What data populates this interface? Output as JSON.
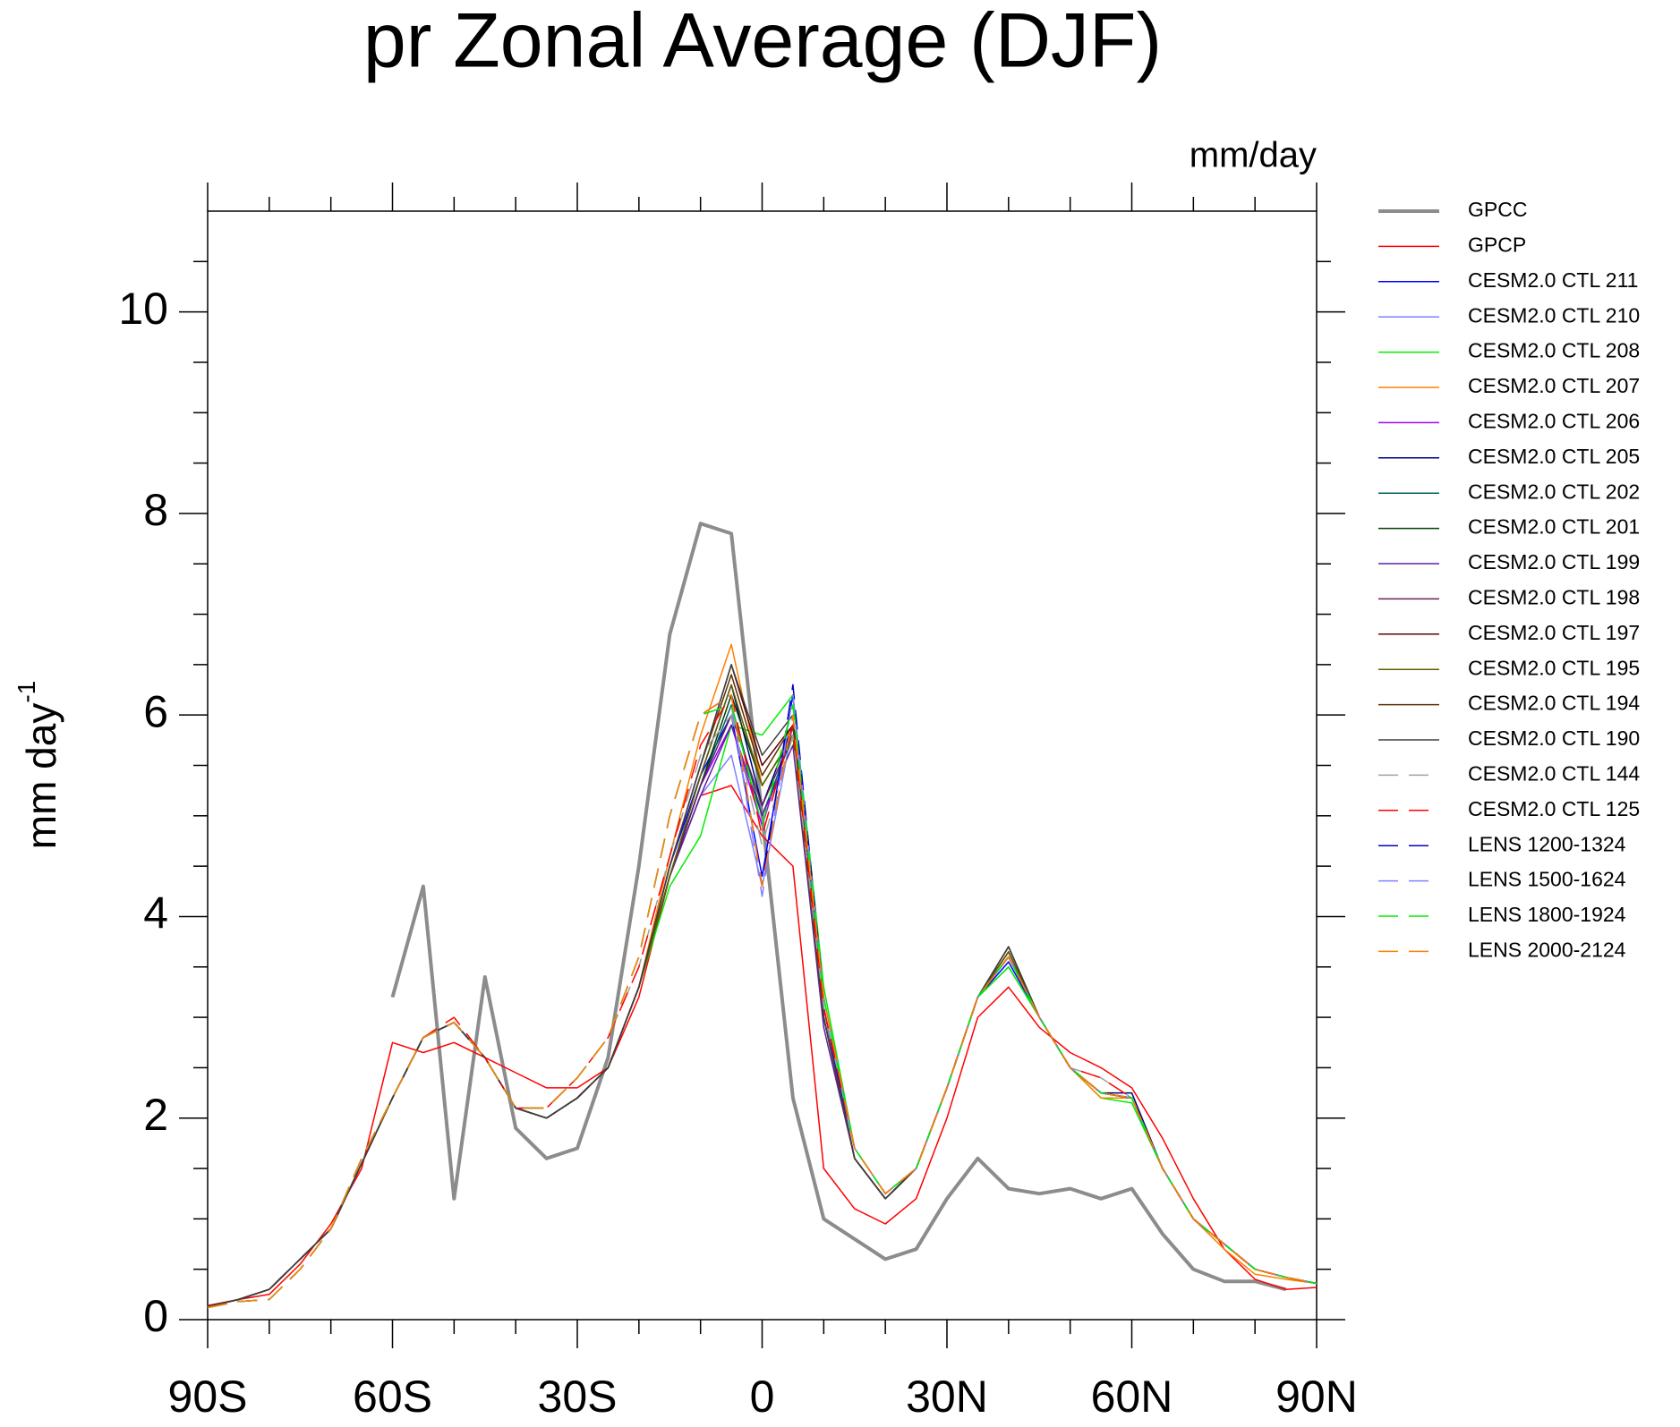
{
  "chart_data": {
    "type": "line",
    "title": "pr Zonal Average (DJF)",
    "units": "mm/day",
    "ylabel": "mm day",
    "ylabel_sup": "-1",
    "xlim": [
      -90,
      90
    ],
    "ylim": [
      0,
      11
    ],
    "xticks": [
      {
        "value": -90,
        "label": "90S"
      },
      {
        "value": -60,
        "label": "60S"
      },
      {
        "value": -30,
        "label": "30S"
      },
      0,
      {
        "value": 30,
        "label": "30N"
      },
      {
        "value": 60,
        "label": "60N"
      },
      {
        "value": 90,
        "label": "90N"
      }
    ],
    "xminorticks": [
      -80,
      -70,
      -50,
      -40,
      -20,
      -10,
      10,
      20,
      40,
      50,
      70,
      80
    ],
    "yticks": [
      0,
      2,
      4,
      6,
      8,
      10
    ],
    "yminorticks": [
      0.5,
      1,
      1.5,
      2.5,
      3,
      3.5,
      4.5,
      5,
      5.5,
      6.5,
      7,
      7.5,
      8.5,
      9,
      9.5,
      10.5
    ],
    "x": [
      -90,
      -85,
      -80,
      -75,
      -70,
      -65,
      -60,
      -55,
      -50,
      -45,
      -40,
      -35,
      -30,
      -25,
      -20,
      -15,
      -10,
      -5,
      0,
      5,
      10,
      15,
      20,
      25,
      30,
      35,
      40,
      45,
      50,
      55,
      60,
      65,
      70,
      75,
      80,
      85,
      90
    ],
    "series": [
      {
        "name": "GPCC",
        "color": "#8c8c8c",
        "width": 4,
        "dashed": false,
        "values": [
          null,
          null,
          null,
          null,
          null,
          null,
          3.2,
          4.3,
          1.2,
          3.4,
          1.9,
          1.6,
          1.7,
          2.6,
          4.5,
          6.8,
          7.9,
          7.8,
          5.0,
          2.2,
          1.0,
          0.8,
          0.6,
          0.7,
          1.2,
          1.6,
          1.3,
          1.25,
          1.3,
          1.2,
          1.3,
          0.85,
          0.5,
          0.38,
          0.38,
          0.3,
          null
        ]
      },
      {
        "name": "GPCP",
        "color": "#ff0000",
        "width": 1.5,
        "dashed": false,
        "values": [
          0.14,
          0.2,
          0.25,
          0.55,
          0.95,
          1.5,
          2.75,
          2.65,
          2.75,
          2.6,
          2.45,
          2.3,
          2.3,
          2.5,
          3.2,
          4.4,
          5.2,
          5.3,
          4.8,
          4.5,
          1.5,
          1.1,
          0.95,
          1.2,
          2.0,
          3.0,
          3.3,
          2.9,
          2.65,
          2.5,
          2.3,
          1.8,
          1.2,
          0.7,
          0.4,
          0.3,
          0.32
        ]
      },
      {
        "name": "CESM2.0 CTL 211",
        "color": "#0000ff",
        "width": 1.5,
        "dashed": false,
        "values": [
          0.13,
          0.2,
          0.3,
          0.6,
          0.9,
          1.55,
          2.2,
          2.8,
          2.95,
          2.6,
          2.1,
          2.0,
          2.2,
          2.5,
          3.3,
          4.5,
          5.4,
          6.0,
          4.4,
          6.2,
          3.1,
          1.6,
          1.2,
          1.5,
          2.3,
          3.2,
          3.55,
          3.0,
          2.5,
          2.25,
          2.2,
          1.5,
          1.0,
          0.75,
          0.5,
          0.42,
          0.36
        ]
      },
      {
        "name": "CESM2.0 CTL 210",
        "color": "#8080ff",
        "width": 1.5,
        "dashed": false,
        "values": [
          0.13,
          0.2,
          0.3,
          0.6,
          0.9,
          1.55,
          2.2,
          2.8,
          2.95,
          2.6,
          2.1,
          2.0,
          2.2,
          2.5,
          3.3,
          4.4,
          5.2,
          5.6,
          4.3,
          5.9,
          3.0,
          1.6,
          1.2,
          1.5,
          2.3,
          3.2,
          3.5,
          3.0,
          2.5,
          2.25,
          2.2,
          1.5,
          1.0,
          0.75,
          0.5,
          0.42,
          0.36
        ]
      },
      {
        "name": "CESM2.0 CTL 208",
        "color": "#00ee00",
        "width": 1.5,
        "dashed": false,
        "values": [
          0.13,
          0.2,
          0.3,
          0.6,
          0.9,
          1.55,
          2.2,
          2.8,
          2.95,
          2.6,
          2.1,
          2.0,
          2.2,
          2.5,
          3.3,
          4.3,
          4.8,
          5.9,
          5.8,
          6.2,
          3.3,
          1.7,
          1.25,
          1.5,
          2.3,
          3.2,
          3.5,
          3.0,
          2.5,
          2.2,
          2.15,
          1.5,
          1.0,
          0.75,
          0.5,
          0.42,
          0.36
        ]
      },
      {
        "name": "CESM2.0 CTL 207",
        "color": "#ff8000",
        "width": 1.5,
        "dashed": false,
        "values": [
          0.13,
          0.2,
          0.3,
          0.6,
          0.9,
          1.55,
          2.2,
          2.8,
          2.95,
          2.6,
          2.1,
          2.0,
          2.2,
          2.5,
          3.3,
          4.6,
          5.8,
          6.7,
          5.3,
          5.8,
          3.0,
          1.6,
          1.2,
          1.5,
          2.3,
          3.2,
          3.6,
          3.0,
          2.5,
          2.2,
          2.2,
          1.5,
          1.0,
          0.7,
          0.45,
          0.4,
          0.36
        ]
      },
      {
        "name": "CESM2.0 CTL 206",
        "color": "#a000ff",
        "width": 1.5,
        "dashed": false,
        "values": [
          0.13,
          0.2,
          0.3,
          0.6,
          0.9,
          1.55,
          2.2,
          2.8,
          2.95,
          2.6,
          2.1,
          2.0,
          2.2,
          2.5,
          3.3,
          4.4,
          5.3,
          5.9,
          4.9,
          5.9,
          3.0,
          1.6,
          1.2,
          1.5,
          2.3,
          3.2,
          3.6,
          3.0,
          2.5,
          2.25,
          2.2,
          1.5,
          1.0,
          0.75,
          0.5,
          0.42,
          0.36
        ]
      },
      {
        "name": "CESM2.0 CTL 205",
        "color": "#000080",
        "width": 1.5,
        "dashed": false,
        "values": [
          0.13,
          0.2,
          0.3,
          0.6,
          0.9,
          1.55,
          2.2,
          2.8,
          2.95,
          2.6,
          2.1,
          2.0,
          2.2,
          2.5,
          3.3,
          4.4,
          5.4,
          6.3,
          5.1,
          5.9,
          3.0,
          1.6,
          1.2,
          1.5,
          2.3,
          3.2,
          3.65,
          3.0,
          2.5,
          2.25,
          2.25,
          1.5,
          1.0,
          0.75,
          0.5,
          0.42,
          0.36
        ]
      },
      {
        "name": "CESM2.0 CTL 202",
        "color": "#006060",
        "width": 1.5,
        "dashed": false,
        "values": [
          0.13,
          0.2,
          0.3,
          0.6,
          0.9,
          1.55,
          2.2,
          2.8,
          2.95,
          2.6,
          2.1,
          2.0,
          2.2,
          2.5,
          3.3,
          4.4,
          5.3,
          6.1,
          5.0,
          5.8,
          3.0,
          1.6,
          1.2,
          1.5,
          2.3,
          3.2,
          3.6,
          3.0,
          2.5,
          2.25,
          2.2,
          1.5,
          1.0,
          0.75,
          0.5,
          0.42,
          0.36
        ]
      },
      {
        "name": "CESM2.0 CTL 201",
        "color": "#004000",
        "width": 1.5,
        "dashed": false,
        "values": [
          0.13,
          0.2,
          0.3,
          0.6,
          0.9,
          1.55,
          2.2,
          2.8,
          2.95,
          2.6,
          2.1,
          2.0,
          2.2,
          2.5,
          3.3,
          4.4,
          5.3,
          6.2,
          5.3,
          5.8,
          3.0,
          1.6,
          1.2,
          1.5,
          2.3,
          3.2,
          3.65,
          3.0,
          2.5,
          2.25,
          2.2,
          1.5,
          1.0,
          0.75,
          0.5,
          0.42,
          0.36
        ]
      },
      {
        "name": "CESM2.0 CTL 199",
        "color": "#6020a0",
        "width": 1.5,
        "dashed": false,
        "values": [
          0.13,
          0.2,
          0.3,
          0.6,
          0.9,
          1.55,
          2.2,
          2.8,
          2.95,
          2.6,
          2.1,
          2.0,
          2.2,
          2.5,
          3.3,
          4.4,
          5.2,
          5.9,
          5.0,
          5.7,
          2.9,
          1.6,
          1.2,
          1.5,
          2.3,
          3.2,
          3.6,
          3.0,
          2.5,
          2.25,
          2.2,
          1.5,
          1.0,
          0.75,
          0.5,
          0.42,
          0.36
        ]
      },
      {
        "name": "CESM2.0 CTL 198",
        "color": "#602060",
        "width": 1.5,
        "dashed": false,
        "values": [
          0.13,
          0.2,
          0.3,
          0.6,
          0.9,
          1.55,
          2.2,
          2.8,
          2.95,
          2.6,
          2.1,
          2.0,
          2.2,
          2.5,
          3.3,
          4.4,
          5.3,
          6.0,
          5.1,
          5.8,
          3.0,
          1.6,
          1.2,
          1.5,
          2.3,
          3.2,
          3.6,
          3.0,
          2.5,
          2.25,
          2.2,
          1.5,
          1.0,
          0.75,
          0.5,
          0.42,
          0.36
        ]
      },
      {
        "name": "CESM2.0 CTL 197",
        "color": "#600000",
        "width": 1.5,
        "dashed": false,
        "values": [
          0.13,
          0.2,
          0.3,
          0.6,
          0.9,
          1.55,
          2.2,
          2.8,
          2.95,
          2.6,
          2.1,
          2.0,
          2.2,
          2.5,
          3.3,
          4.5,
          5.5,
          6.5,
          5.5,
          5.9,
          3.0,
          1.6,
          1.2,
          1.5,
          2.3,
          3.2,
          3.7,
          3.0,
          2.5,
          2.25,
          2.2,
          1.5,
          1.0,
          0.75,
          0.5,
          0.42,
          0.36
        ]
      },
      {
        "name": "CESM2.0 CTL 195",
        "color": "#606000",
        "width": 1.5,
        "dashed": false,
        "values": [
          0.13,
          0.2,
          0.3,
          0.6,
          0.9,
          1.55,
          2.2,
          2.8,
          2.95,
          2.6,
          2.1,
          2.0,
          2.2,
          2.5,
          3.3,
          4.4,
          5.4,
          6.3,
          5.3,
          5.8,
          3.0,
          1.6,
          1.2,
          1.5,
          2.3,
          3.2,
          3.65,
          3.0,
          2.5,
          2.25,
          2.2,
          1.5,
          1.0,
          0.75,
          0.5,
          0.42,
          0.36
        ]
      },
      {
        "name": "CESM2.0 CTL 194",
        "color": "#603000",
        "width": 1.5,
        "dashed": false,
        "values": [
          0.13,
          0.2,
          0.3,
          0.6,
          0.9,
          1.55,
          2.2,
          2.8,
          2.95,
          2.6,
          2.1,
          2.0,
          2.2,
          2.5,
          3.3,
          4.5,
          5.5,
          6.4,
          5.4,
          5.9,
          3.0,
          1.6,
          1.2,
          1.5,
          2.3,
          3.2,
          3.7,
          3.0,
          2.5,
          2.25,
          2.2,
          1.5,
          1.0,
          0.75,
          0.5,
          0.42,
          0.36
        ]
      },
      {
        "name": "CESM2.0 CTL 190",
        "color": "#404040",
        "width": 1.5,
        "dashed": false,
        "values": [
          0.13,
          0.2,
          0.3,
          0.6,
          0.9,
          1.55,
          2.2,
          2.8,
          2.95,
          2.6,
          2.1,
          2.0,
          2.2,
          2.5,
          3.3,
          4.5,
          5.5,
          6.5,
          5.6,
          6.0,
          3.0,
          1.6,
          1.2,
          1.5,
          2.3,
          3.2,
          3.7,
          3.0,
          2.5,
          2.25,
          2.2,
          1.5,
          1.0,
          0.75,
          0.5,
          0.42,
          0.36
        ]
      },
      {
        "name": "CESM2.0 CTL 144",
        "color": "#a0a0a0",
        "width": 1.5,
        "dashed": true,
        "values": [
          0.12,
          0.18,
          0.2,
          0.5,
          0.9,
          1.6,
          2.2,
          2.8,
          2.95,
          2.6,
          2.1,
          2.1,
          2.4,
          2.8,
          3.5,
          4.6,
          5.6,
          6.0,
          4.7,
          5.8,
          3.1,
          1.7,
          1.25,
          1.5,
          2.3,
          3.2,
          3.6,
          3.0,
          2.5,
          2.4,
          2.2,
          1.5,
          1.0,
          0.75,
          0.5,
          0.42,
          0.36
        ]
      },
      {
        "name": "CESM2.0 CTL 125",
        "color": "#ff0000",
        "width": 1.5,
        "dashed": true,
        "values": [
          0.12,
          0.18,
          0.2,
          0.5,
          0.9,
          1.6,
          2.2,
          2.8,
          3.0,
          2.6,
          2.1,
          2.1,
          2.4,
          2.8,
          3.5,
          4.6,
          5.7,
          6.2,
          4.8,
          5.9,
          3.1,
          1.7,
          1.25,
          1.5,
          2.3,
          3.2,
          3.6,
          3.0,
          2.5,
          2.4,
          2.2,
          1.5,
          1.0,
          0.75,
          0.5,
          0.42,
          0.36
        ]
      },
      {
        "name": "LENS 1200-1324",
        "color": "#0000c0",
        "width": 1.5,
        "dashed": true,
        "values": [
          0.12,
          0.18,
          0.2,
          0.5,
          0.9,
          1.6,
          2.2,
          2.8,
          2.95,
          2.6,
          2.1,
          2.1,
          2.4,
          2.8,
          3.6,
          5.0,
          6.0,
          6.2,
          4.3,
          6.3,
          3.2,
          1.7,
          1.25,
          1.5,
          2.3,
          3.2,
          3.6,
          3.0,
          2.5,
          2.25,
          2.2,
          1.5,
          1.0,
          0.75,
          0.5,
          0.42,
          0.36
        ]
      },
      {
        "name": "LENS 1500-1624",
        "color": "#8080ff",
        "width": 1.5,
        "dashed": true,
        "values": [
          0.12,
          0.18,
          0.2,
          0.5,
          0.9,
          1.6,
          2.2,
          2.8,
          2.95,
          2.6,
          2.1,
          2.1,
          2.4,
          2.8,
          3.6,
          5.0,
          6.0,
          6.1,
          4.2,
          6.2,
          3.2,
          1.7,
          1.25,
          1.5,
          2.3,
          3.2,
          3.6,
          3.0,
          2.5,
          2.25,
          2.2,
          1.5,
          1.0,
          0.75,
          0.5,
          0.42,
          0.36
        ]
      },
      {
        "name": "LENS 1800-1924",
        "color": "#00ee00",
        "width": 1.5,
        "dashed": true,
        "values": [
          0.12,
          0.18,
          0.2,
          0.5,
          0.9,
          1.6,
          2.2,
          2.8,
          2.95,
          2.6,
          2.1,
          2.1,
          2.4,
          2.8,
          3.6,
          5.0,
          6.0,
          6.1,
          4.9,
          6.1,
          3.2,
          1.7,
          1.25,
          1.5,
          2.3,
          3.2,
          3.6,
          3.0,
          2.5,
          2.25,
          2.2,
          1.5,
          1.0,
          0.75,
          0.5,
          0.42,
          0.36
        ]
      },
      {
        "name": "LENS 2000-2124",
        "color": "#ff8000",
        "width": 1.5,
        "dashed": true,
        "values": [
          0.12,
          0.18,
          0.2,
          0.5,
          0.9,
          1.6,
          2.2,
          2.8,
          2.95,
          2.6,
          2.1,
          2.1,
          2.4,
          2.8,
          3.6,
          5.0,
          6.0,
          6.2,
          4.3,
          6.0,
          3.2,
          1.7,
          1.25,
          1.5,
          2.3,
          3.2,
          3.6,
          3.0,
          2.5,
          2.25,
          2.2,
          1.5,
          1.0,
          0.75,
          0.5,
          0.42,
          0.36
        ]
      }
    ]
  }
}
